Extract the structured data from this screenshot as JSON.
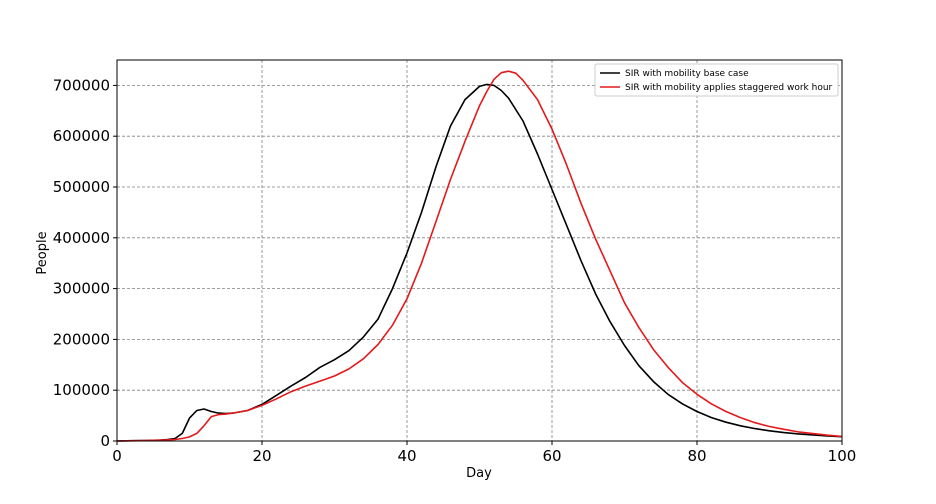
{
  "chart_data": {
    "type": "line",
    "xlabel": "Day",
    "ylabel": "People",
    "xlim": [
      0,
      100
    ],
    "ylim": [
      0,
      750000
    ],
    "xticks": [
      0,
      20,
      40,
      60,
      80,
      100
    ],
    "yticks": [
      0,
      100000,
      200000,
      300000,
      400000,
      500000,
      600000,
      700000
    ],
    "grid": true,
    "legend_position": "top-right",
    "series": [
      {
        "name": "SIR with mobility base case",
        "color": "#000000",
        "x": [
          0,
          2,
          4,
          6,
          7,
          8,
          9,
          10,
          11,
          12,
          13,
          14,
          15,
          16,
          18,
          20,
          22,
          24,
          26,
          28,
          30,
          32,
          34,
          36,
          38,
          40,
          42,
          44,
          46,
          48,
          50,
          51,
          52,
          53,
          54,
          56,
          58,
          60,
          62,
          64,
          66,
          68,
          70,
          72,
          74,
          76,
          78,
          80,
          82,
          84,
          86,
          88,
          90,
          92,
          94,
          96,
          98,
          100
        ],
        "y": [
          0,
          500,
          1000,
          2000,
          3000,
          5000,
          15000,
          45000,
          60000,
          63000,
          58000,
          55000,
          54000,
          55000,
          60000,
          72000,
          90000,
          108000,
          125000,
          145000,
          160000,
          178000,
          205000,
          240000,
          300000,
          370000,
          450000,
          540000,
          620000,
          672000,
          698000,
          702000,
          700000,
          690000,
          675000,
          630000,
          565000,
          495000,
          425000,
          355000,
          290000,
          235000,
          188000,
          148000,
          117000,
          92000,
          73000,
          58000,
          46000,
          37000,
          30000,
          24500,
          20000,
          16500,
          14000,
          12000,
          10000,
          8500
        ]
      },
      {
        "name": "SIR with mobility applies staggered work hour",
        "color": "#e31a1c",
        "x": [
          0,
          2,
          4,
          6,
          8,
          9,
          10,
          11,
          12,
          13,
          14,
          15,
          16,
          18,
          20,
          22,
          24,
          26,
          28,
          30,
          32,
          34,
          36,
          38,
          40,
          42,
          44,
          46,
          48,
          50,
          51,
          52,
          53,
          54,
          55,
          56,
          58,
          60,
          62,
          64,
          66,
          68,
          70,
          72,
          74,
          76,
          78,
          80,
          82,
          84,
          86,
          88,
          90,
          92,
          94,
          96,
          98,
          100
        ],
        "y": [
          0,
          300,
          800,
          1500,
          3000,
          5000,
          8000,
          15000,
          30000,
          48000,
          52000,
          53000,
          55000,
          60000,
          70000,
          83000,
          97000,
          108000,
          118000,
          128000,
          142000,
          162000,
          190000,
          228000,
          280000,
          350000,
          432000,
          515000,
          590000,
          660000,
          688000,
          712000,
          725000,
          728000,
          724000,
          710000,
          672000,
          614000,
          544000,
          468000,
          398000,
          335000,
          272000,
          223000,
          180000,
          145000,
          115000,
          92000,
          73000,
          58000,
          46000,
          36000,
          28500,
          23000,
          18000,
          14500,
          11500,
          9000
        ]
      }
    ]
  }
}
